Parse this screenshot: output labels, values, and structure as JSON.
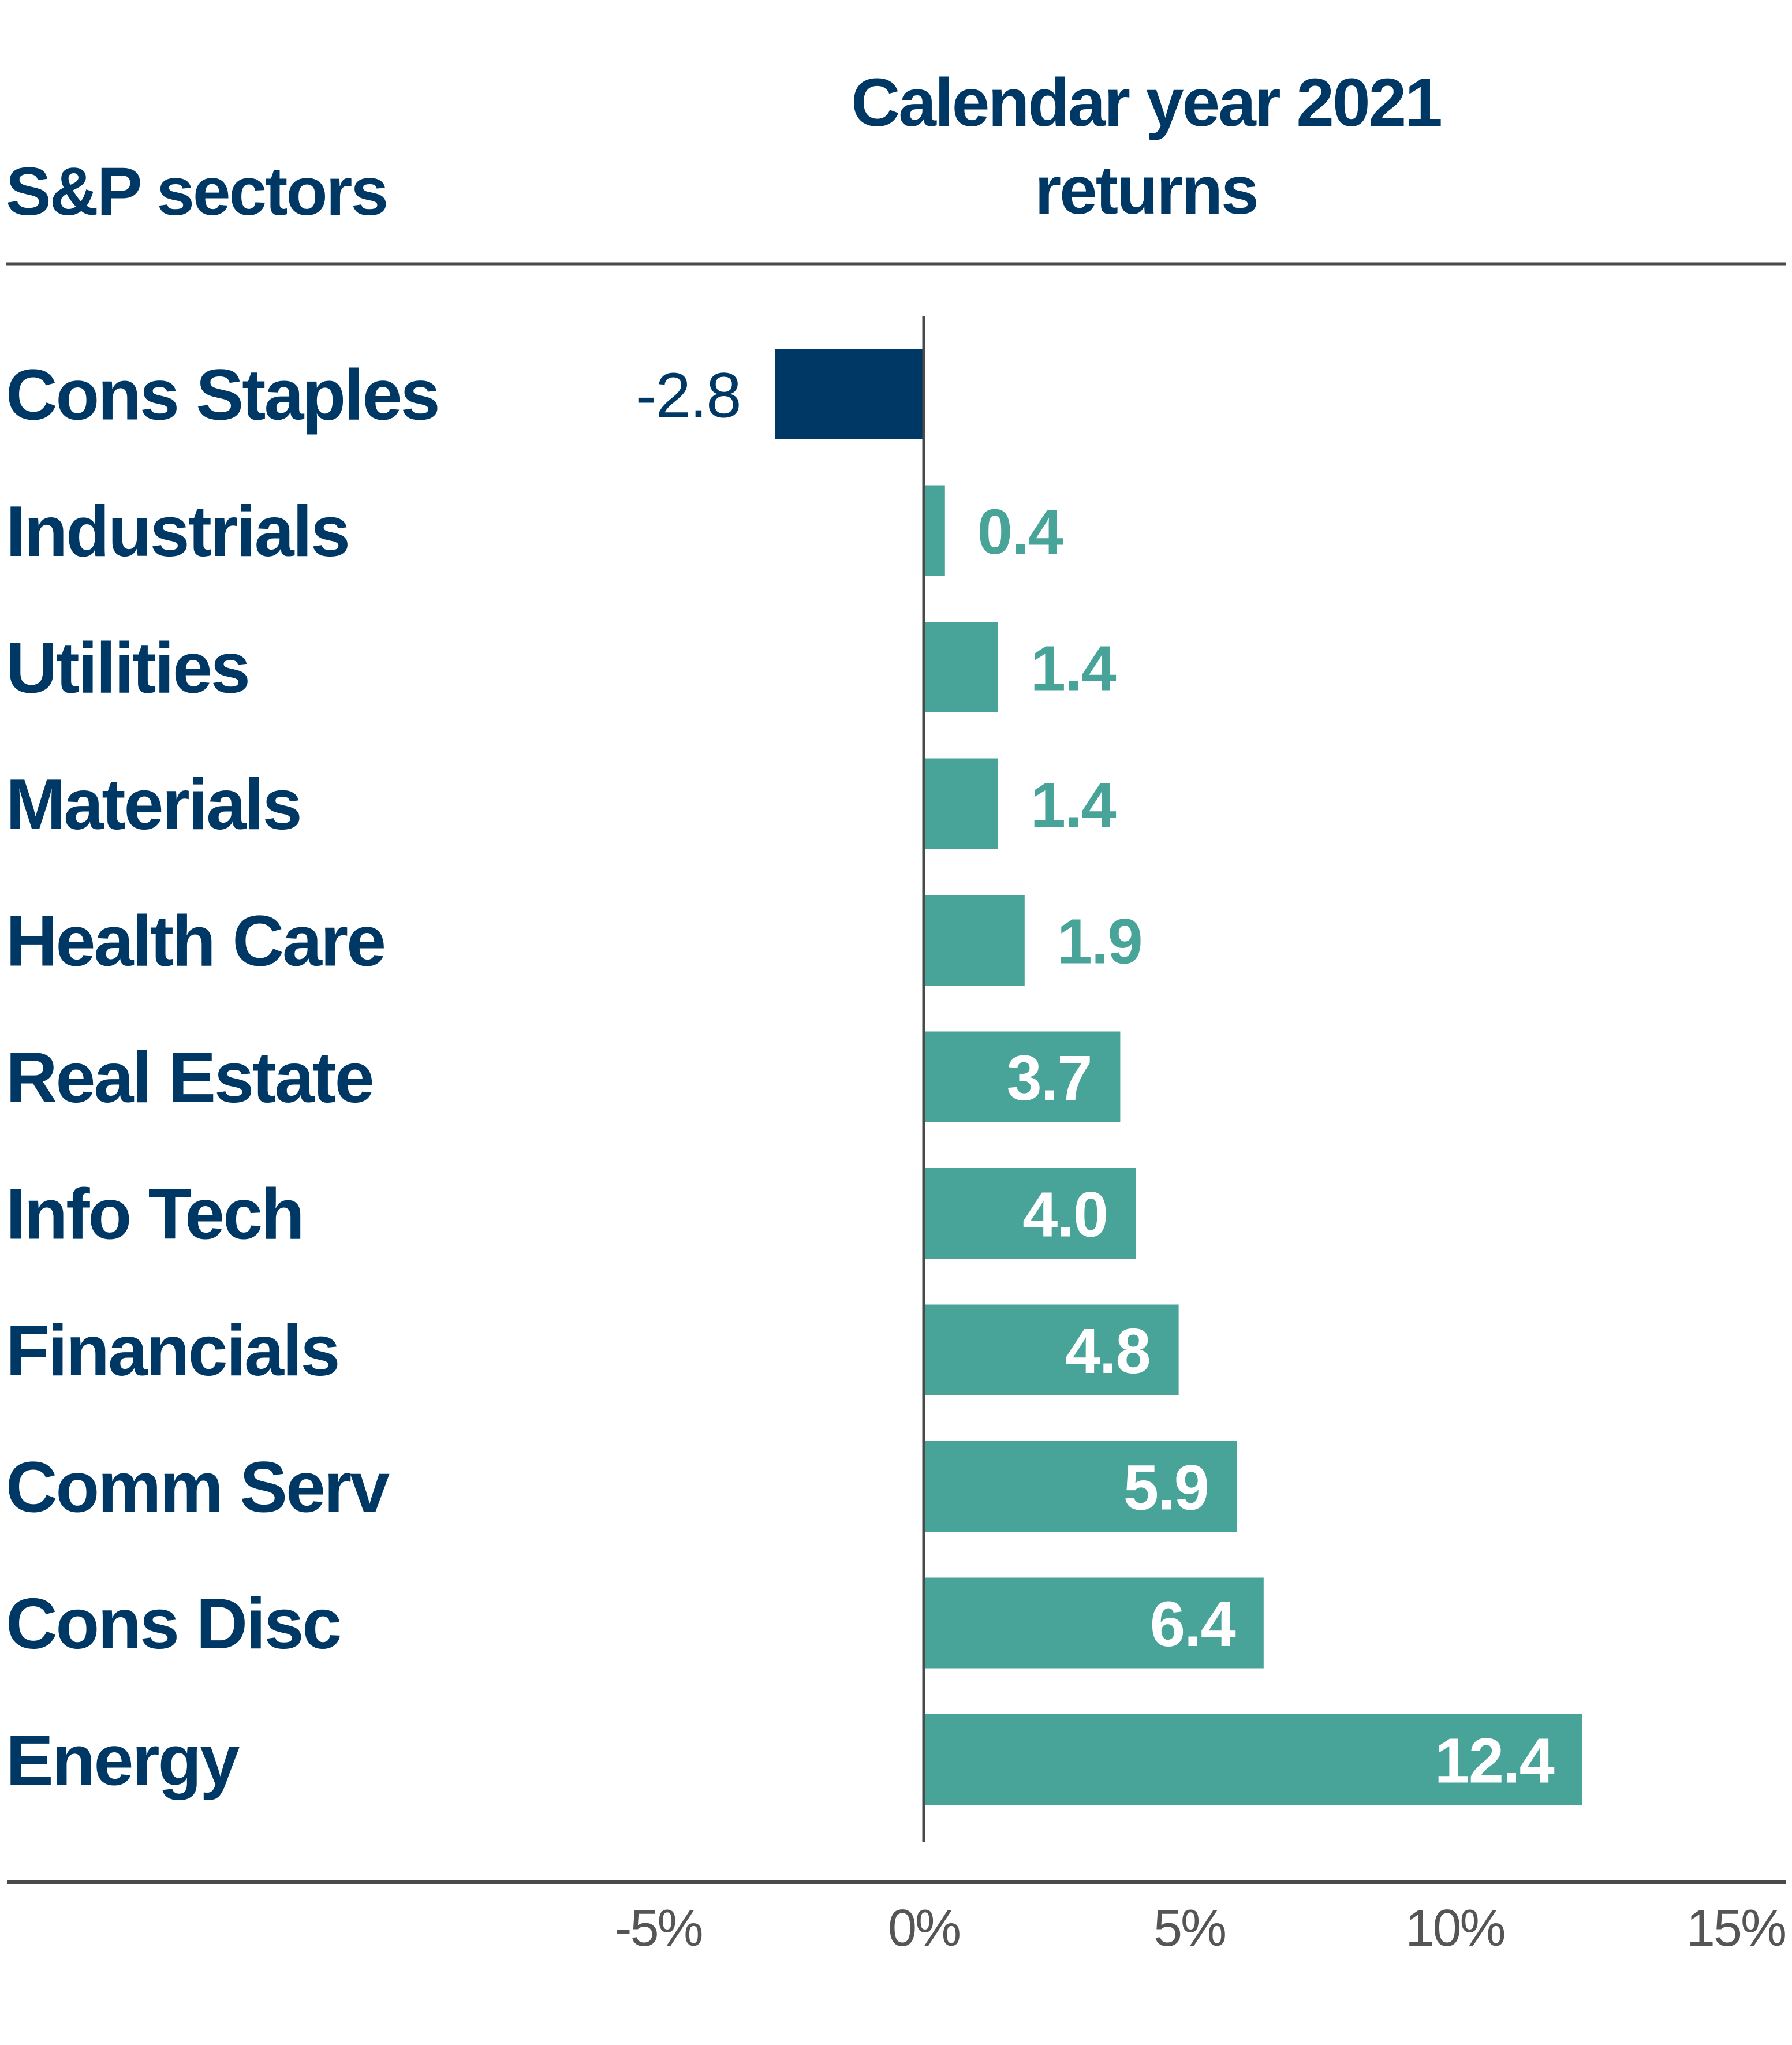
{
  "chart_data": {
    "type": "bar",
    "orientation": "horizontal",
    "header_left": "S&P sectors",
    "title_lines": [
      "Calendar year 2021",
      "returns"
    ],
    "categories": [
      "Cons Staples",
      "Industrials",
      "Utilities",
      "Materials",
      "Health Care",
      "Real Estate",
      "Info Tech",
      "Financials",
      "Comm Serv",
      "Cons Disc",
      "Energy"
    ],
    "values": [
      -2.8,
      0.4,
      1.4,
      1.4,
      1.9,
      3.7,
      4.0,
      4.8,
      5.9,
      6.4,
      12.4
    ],
    "value_labels": [
      "-2.8",
      "0.4",
      "1.4",
      "1.4",
      "1.9",
      "3.7",
      "4.0",
      "4.8",
      "5.9",
      "6.4",
      "12.4"
    ],
    "xlim": [
      -5,
      15
    ],
    "ticks": [
      -5,
      0,
      5,
      10,
      15
    ],
    "tick_labels": [
      "-5%",
      "0%",
      "5%",
      "10%",
      "15%"
    ],
    "xlabel": "",
    "ylabel": "",
    "grid": false,
    "legend": "none"
  },
  "colors": {
    "negative": "#003865",
    "positive": "#48a399",
    "text_dark": "#003865",
    "text_positive": "#48a399",
    "text_on_bar": "#ffffff",
    "axis": "#4a4a4a",
    "tick_text": "#555555"
  }
}
